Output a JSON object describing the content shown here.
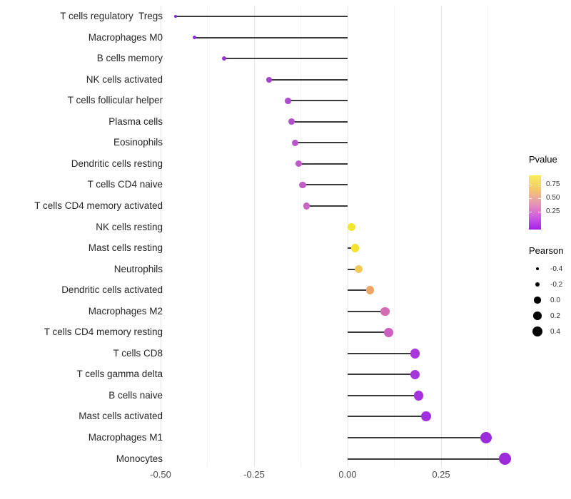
{
  "chart_data": {
    "type": "lollipop",
    "title": "",
    "xlabel": "",
    "ylabel": "",
    "x_tick_labels": [
      "-0.50",
      "-0.25",
      "0.00",
      "0.25"
    ],
    "x_ticks_major": [
      -0.5,
      -0.25,
      0.0,
      0.25
    ],
    "x_ticks_minor": [
      -0.375,
      -0.125,
      0.125,
      0.375
    ],
    "xlim": [
      -0.545,
      0.46
    ],
    "grid": "vertical-only",
    "stem_color": "#3a3a3a",
    "rows": [
      {
        "label": "T cells regulatory  Tregs",
        "pearson": -0.46,
        "color": "#7b2be0"
      },
      {
        "label": "Macrophages M0",
        "pearson": -0.41,
        "color": "#8c2be2"
      },
      {
        "label": "B cells memory",
        "pearson": -0.33,
        "color": "#9932d2"
      },
      {
        "label": "NK cells activated",
        "pearson": -0.21,
        "color": "#a440d2"
      },
      {
        "label": "T cells follicular helper",
        "pearson": -0.16,
        "color": "#ae4ace"
      },
      {
        "label": "Plasma cells",
        "pearson": -0.15,
        "color": "#b350cc"
      },
      {
        "label": "Eosinophils",
        "pearson": -0.14,
        "color": "#b855ca"
      },
      {
        "label": "Dendritic cells resting",
        "pearson": -0.13,
        "color": "#bd59c9"
      },
      {
        "label": "T cells CD4 naive",
        "pearson": -0.12,
        "color": "#c25ec8"
      },
      {
        "label": "T cells CD4 memory activated",
        "pearson": -0.11,
        "color": "#c765c6"
      },
      {
        "label": "NK cells resting",
        "pearson": 0.01,
        "color": "#f2e72e"
      },
      {
        "label": "Mast cells resting",
        "pearson": 0.02,
        "color": "#f2e430"
      },
      {
        "label": "Neutrophils",
        "pearson": 0.03,
        "color": "#efcb55"
      },
      {
        "label": "Dendritic cells activated",
        "pearson": 0.06,
        "color": "#efa566"
      },
      {
        "label": "Macrophages M2",
        "pearson": 0.1,
        "color": "#d36cb1"
      },
      {
        "label": "T cells CD4 memory resting",
        "pearson": 0.11,
        "color": "#cc60bf"
      },
      {
        "label": "T cells CD8",
        "pearson": 0.18,
        "color": "#a937db"
      },
      {
        "label": "T cells gamma delta",
        "pearson": 0.18,
        "color": "#a735dc"
      },
      {
        "label": "B cells naive",
        "pearson": 0.19,
        "color": "#a532dd"
      },
      {
        "label": "Mast cells activated",
        "pearson": 0.21,
        "color": "#a02ede"
      },
      {
        "label": "Macrophages M1",
        "pearson": 0.37,
        "color": "#9d2bdc"
      },
      {
        "label": "Monocytes",
        "pearson": 0.42,
        "color": "#9c2adb"
      }
    ],
    "legend_pvalue": {
      "title": "Pvalue",
      "tick_labels": [
        "0.75",
        "0.50",
        "0.25"
      ],
      "tick_positions": [
        0.17,
        0.42,
        0.67
      ],
      "gradient_top_to_bottom": [
        "#f9ee53",
        "#f3c96b",
        "#e69bae",
        "#cf63dc",
        "#a021f2"
      ]
    },
    "legend_pearson": {
      "title": "Pearson",
      "entries": [
        {
          "label": "-0.4",
          "value": -0.4
        },
        {
          "label": "-0.2",
          "value": -0.2
        },
        {
          "label": "0.0",
          "value": 0.0
        },
        {
          "label": "0.2",
          "value": 0.2
        },
        {
          "label": "0.4",
          "value": 0.4
        }
      ],
      "dot_color": "#000000"
    }
  }
}
